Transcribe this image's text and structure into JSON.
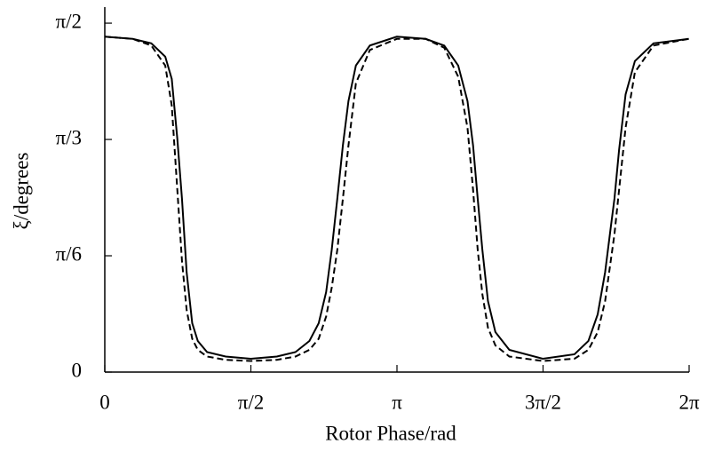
{
  "chart_data": {
    "type": "line",
    "x_label": "Rotor Phase/rad",
    "y_label": "ξ/degrees",
    "x": [
      0,
      0.3,
      0.5,
      0.65,
      0.72,
      0.78,
      0.83,
      0.88,
      0.94,
      1.0,
      1.1,
      1.3,
      1.57,
      1.85,
      2.05,
      2.2,
      2.3,
      2.38,
      2.44,
      2.5,
      2.56,
      2.62,
      2.7,
      2.85,
      3.14,
      3.45,
      3.65,
      3.8,
      3.9,
      3.96,
      4.01,
      4.06,
      4.12,
      4.2,
      4.35,
      4.71,
      5.05,
      5.2,
      5.3,
      5.38,
      5.44,
      5.48,
      5.53,
      5.6,
      5.7,
      5.9,
      6.28
    ],
    "series": [
      {
        "color": "#000000",
        "line_style": "solid",
        "values": [
          1.51,
          1.5,
          1.48,
          1.42,
          1.32,
          1.05,
          0.78,
          0.45,
          0.22,
          0.14,
          0.09,
          0.07,
          0.06,
          0.07,
          0.09,
          0.14,
          0.22,
          0.36,
          0.55,
          0.78,
          1.02,
          1.22,
          1.38,
          1.47,
          1.51,
          1.5,
          1.47,
          1.38,
          1.22,
          1.02,
          0.78,
          0.55,
          0.32,
          0.18,
          0.1,
          0.06,
          0.08,
          0.14,
          0.26,
          0.45,
          0.65,
          0.78,
          1.0,
          1.25,
          1.4,
          1.48,
          1.5
        ]
      },
      {
        "color": "#000000",
        "line_style": "dashed",
        "values": [
          1.51,
          1.5,
          1.47,
          1.38,
          1.2,
          0.82,
          0.5,
          0.28,
          0.15,
          0.1,
          0.07,
          0.055,
          0.05,
          0.055,
          0.07,
          0.1,
          0.15,
          0.25,
          0.38,
          0.55,
          0.78,
          1.02,
          1.3,
          1.45,
          1.5,
          1.5,
          1.46,
          1.33,
          1.1,
          0.82,
          0.55,
          0.35,
          0.2,
          0.12,
          0.07,
          0.05,
          0.06,
          0.1,
          0.18,
          0.32,
          0.5,
          0.62,
          0.82,
          1.1,
          1.35,
          1.47,
          1.5
        ]
      }
    ],
    "xlim": [
      0,
      6.2832
    ],
    "ylim": [
      0,
      1.643
    ],
    "xticks": [
      0,
      {
        "value": 1.5708,
        "label": "π/2"
      },
      {
        "value": 3.1416,
        "label": "π"
      },
      {
        "value": 4.7124,
        "label": "3π/2"
      },
      {
        "value": 6.2832,
        "label": "2π"
      }
    ],
    "yticks": [
      0,
      {
        "value": 0.5236,
        "label": "π/6"
      },
      {
        "value": 1.0472,
        "label": "π/3"
      },
      {
        "value": 1.5708,
        "label": "π/2"
      }
    ]
  }
}
